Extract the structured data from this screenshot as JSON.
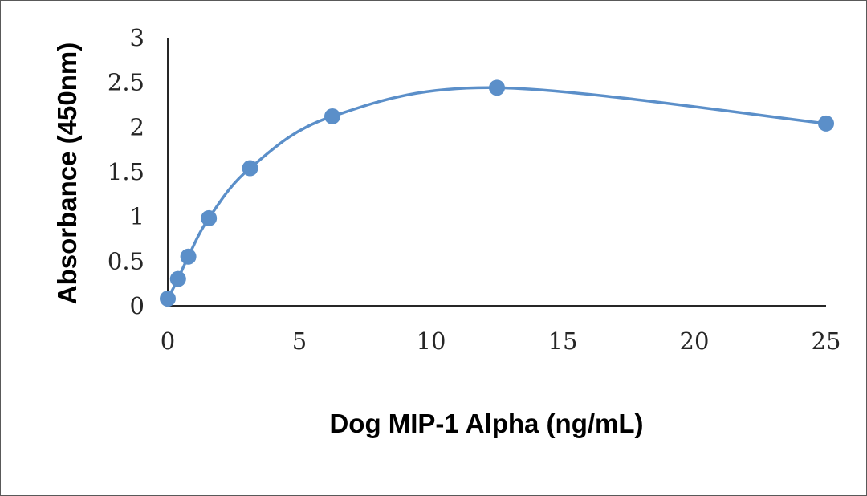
{
  "chart_data": {
    "type": "scatter",
    "title": "",
    "xlabel": "Dog MIP-1 Alpha (ng/mL)",
    "ylabel": "Absorbance (450nm)",
    "xlim": [
      0,
      25
    ],
    "ylim": [
      0,
      3
    ],
    "xticks": [
      "0",
      "5",
      "10",
      "15",
      "20",
      "25"
    ],
    "yticks": [
      "0",
      "0.5",
      "1",
      "1.5",
      "2",
      "2.5",
      "3"
    ],
    "grid": false,
    "legend": "none",
    "smooth_line": true,
    "series": [
      {
        "color": "#5b8fc9",
        "x": [
          0,
          0.39,
          0.78,
          1.56,
          3.125,
          6.25,
          12.5,
          25
        ],
        "y": [
          0.08,
          0.3,
          0.55,
          0.98,
          1.54,
          2.12,
          2.44,
          2.04
        ]
      }
    ]
  }
}
